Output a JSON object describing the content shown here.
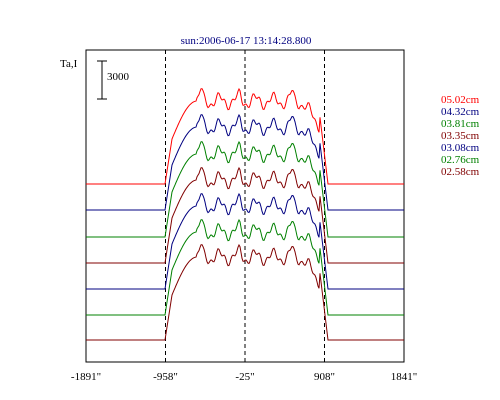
{
  "chart_data": {
    "type": "line",
    "title": "sun:2006-06-17 13:14:28.800",
    "ylabel": "Ta,I",
    "scale_bar_label": "3000",
    "x_ticks": [
      "-1891\"",
      "-958\"",
      "-25\"",
      "908\"",
      "1841\""
    ],
    "x_tick_values": [
      -1891,
      -958,
      -25,
      908,
      1841
    ],
    "xlim": [
      -1891,
      1841
    ],
    "reference_lines_x": [
      -958,
      -25,
      908
    ],
    "grid": false,
    "legend_position": "right",
    "series": [
      {
        "name": "05.02cm",
        "color": "#ff0000"
      },
      {
        "name": "04.32cm",
        "color": "#000080"
      },
      {
        "name": "03.81cm",
        "color": "#008000"
      },
      {
        "name": "03.35cm",
        "color": "#800000"
      },
      {
        "name": "03.08cm",
        "color": "#000080"
      },
      {
        "name": "02.76cm",
        "color": "#008000"
      },
      {
        "name": "02.58cm",
        "color": "#800000"
      }
    ]
  }
}
